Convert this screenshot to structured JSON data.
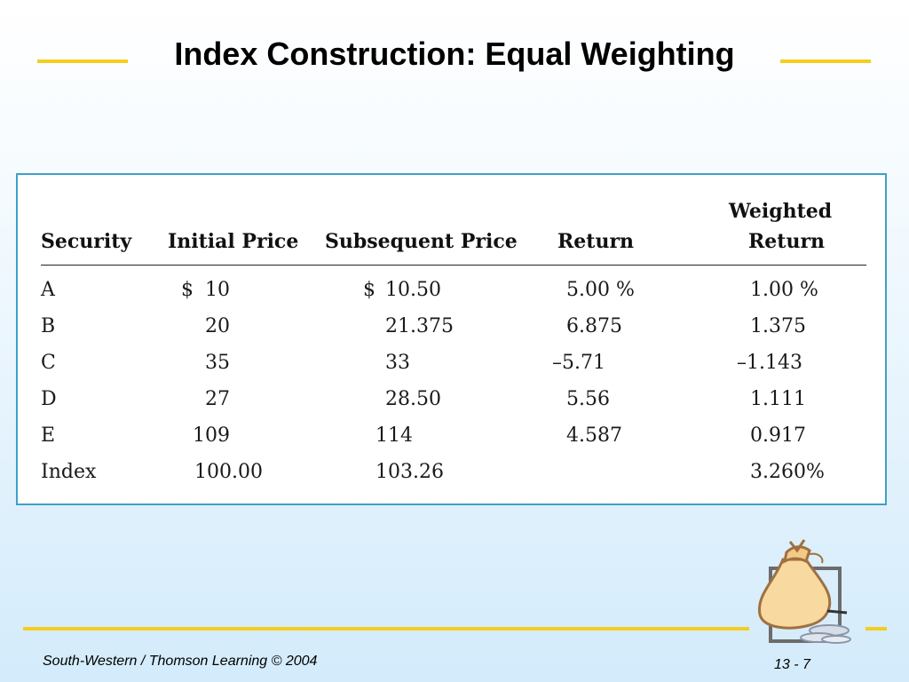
{
  "slide": {
    "title": "Index Construction: Equal Weighting",
    "footer_left": "South-Western / Thomson Learning © 2004",
    "footer_right": "13 - 7"
  },
  "colors": {
    "accent_rule": "#f5cd1f",
    "table_border": "#3fa0c6"
  },
  "table": {
    "headers": {
      "security": "Security",
      "initial_price": "Initial Price",
      "subsequent_price": "Subsequent Price",
      "return": "Return",
      "weighted_line1": "Weighted",
      "weighted_line2": "Return"
    },
    "rows": [
      {
        "security": "A",
        "ip_prefix": "$",
        "initial_price": "10",
        "sp_prefix": "$",
        "subsequent_price": "10.50",
        "return": "5.00  %",
        "weighted_return": "1.00  %"
      },
      {
        "security": "B",
        "ip_prefix": "",
        "initial_price": "20",
        "sp_prefix": "",
        "subsequent_price": "21.375",
        "return": "6.875",
        "weighted_return": "1.375"
      },
      {
        "security": "C",
        "ip_prefix": "",
        "initial_price": "35",
        "sp_prefix": "",
        "subsequent_price": "33",
        "return": "–5.71",
        "weighted_return": "–1.143"
      },
      {
        "security": "D",
        "ip_prefix": "",
        "initial_price": "27",
        "sp_prefix": "",
        "subsequent_price": "28.50",
        "return": "5.56",
        "weighted_return": "1.111"
      },
      {
        "security": "E",
        "ip_prefix": "",
        "initial_price": "109",
        "sp_prefix": "",
        "subsequent_price": "114",
        "return": "4.587",
        "weighted_return": "0.917"
      },
      {
        "security": "Index",
        "ip_prefix": "",
        "initial_price": "100.00",
        "sp_prefix": "",
        "subsequent_price": "103.26",
        "return": "",
        "weighted_return": "3.260%"
      }
    ]
  }
}
